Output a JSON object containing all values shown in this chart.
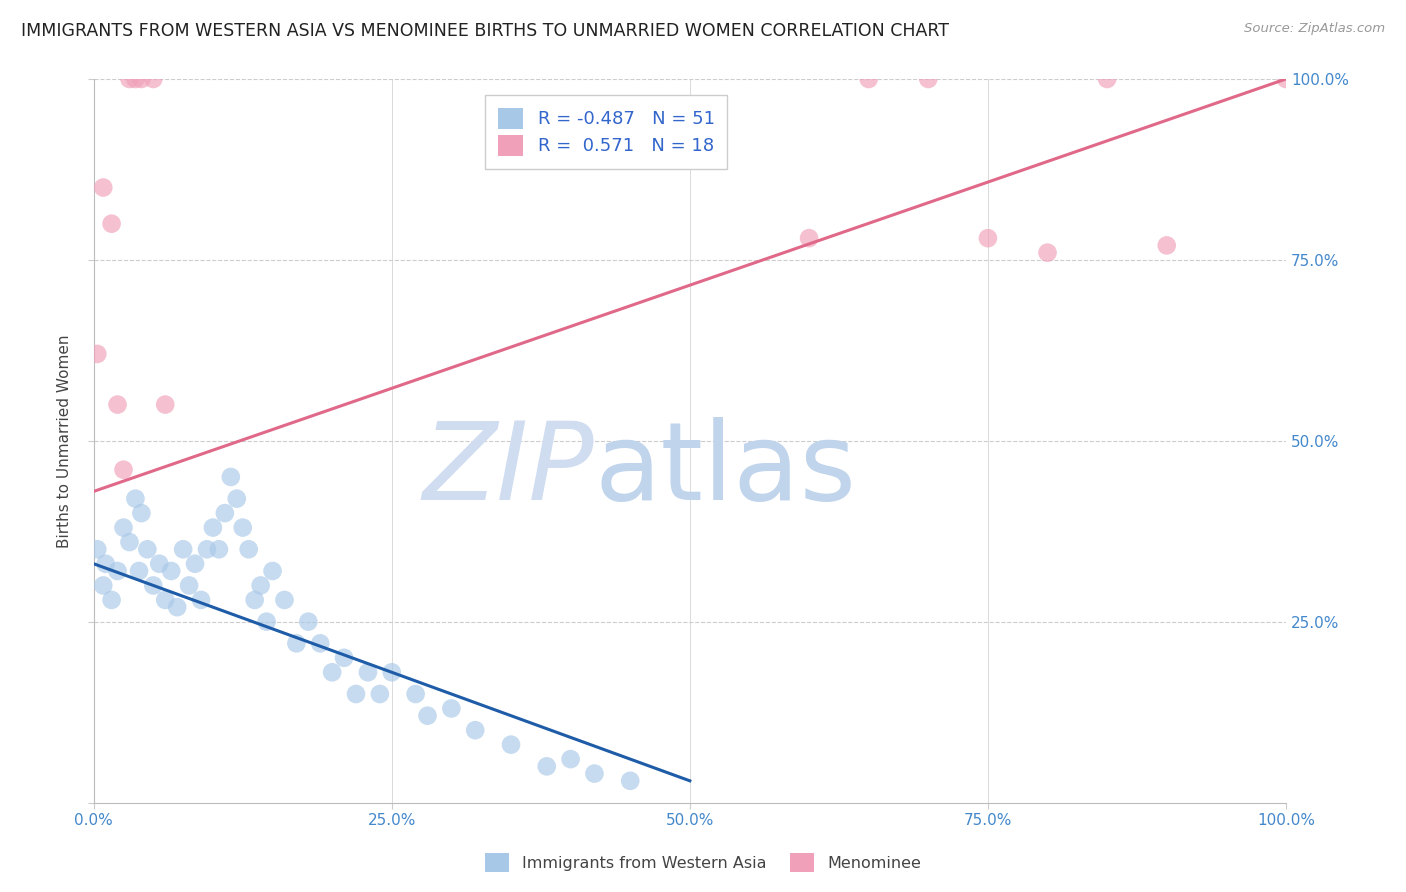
{
  "title": "IMMIGRANTS FROM WESTERN ASIA VS MENOMINEE BIRTHS TO UNMARRIED WOMEN CORRELATION CHART",
  "source": "Source: ZipAtlas.com",
  "ylabel": "Births to Unmarried Women",
  "blue_R": -0.487,
  "blue_N": 51,
  "pink_R": 0.571,
  "pink_N": 18,
  "blue_color": "#a8c8e8",
  "blue_line_color": "#1e5ca8",
  "pink_color": "#f0a0b8",
  "pink_line_color": "#e06888",
  "background_color": "#ffffff",
  "grid_color": "#cccccc",
  "title_color": "#222222",
  "axis_tick_color": "#4488cc",
  "legend_text_color": "#3366cc",
  "blue_x": [
    0.3,
    0.8,
    1.0,
    1.5,
    2.0,
    2.5,
    3.0,
    3.5,
    3.8,
    4.0,
    4.5,
    5.0,
    5.5,
    6.0,
    6.5,
    7.0,
    7.5,
    8.0,
    8.5,
    9.0,
    9.5,
    10.0,
    10.5,
    11.0,
    11.5,
    12.0,
    12.5,
    13.0,
    13.5,
    14.0,
    14.5,
    15.0,
    16.0,
    17.0,
    18.0,
    19.0,
    20.0,
    21.0,
    22.0,
    23.0,
    24.0,
    25.0,
    27.0,
    28.0,
    30.0,
    32.0,
    35.0,
    38.0,
    40.0,
    42.0,
    45.0
  ],
  "blue_y": [
    35.0,
    30.0,
    33.0,
    28.0,
    32.0,
    38.0,
    36.0,
    42.0,
    32.0,
    40.0,
    35.0,
    30.0,
    33.0,
    28.0,
    32.0,
    27.0,
    35.0,
    30.0,
    33.0,
    28.0,
    35.0,
    38.0,
    35.0,
    40.0,
    45.0,
    42.0,
    38.0,
    35.0,
    28.0,
    30.0,
    25.0,
    32.0,
    28.0,
    22.0,
    25.0,
    22.0,
    18.0,
    20.0,
    15.0,
    18.0,
    15.0,
    18.0,
    15.0,
    12.0,
    13.0,
    10.0,
    8.0,
    5.0,
    6.0,
    4.0,
    3.0
  ],
  "pink_x": [
    0.3,
    0.8,
    1.5,
    2.0,
    2.5,
    3.0,
    3.5,
    4.0,
    5.0,
    6.0,
    60.0,
    65.0,
    70.0,
    75.0,
    80.0,
    85.0,
    90.0,
    100.0
  ],
  "pink_y": [
    62.0,
    85.0,
    80.0,
    55.0,
    46.0,
    100.0,
    100.0,
    100.0,
    100.0,
    55.0,
    78.0,
    100.0,
    100.0,
    78.0,
    76.0,
    100.0,
    77.0,
    100.0
  ],
  "blue_line_x0": 0.0,
  "blue_line_y0": 33.0,
  "blue_line_x1": 50.0,
  "blue_line_y1": 3.0,
  "pink_line_x0": 0.0,
  "pink_line_y0": 43.0,
  "pink_line_x1": 100.0,
  "pink_line_y1": 100.0,
  "xlim": [
    0,
    100
  ],
  "ylim": [
    0,
    100
  ],
  "xticks": [
    0,
    25,
    50,
    75,
    100
  ],
  "yticks": [
    0,
    25,
    50,
    75,
    100
  ],
  "xticklabels": [
    "0.0%",
    "25.0%",
    "50.0%",
    "75.0%",
    "100.0%"
  ],
  "right_yticklabels": [
    "",
    "25.0%",
    "50.0%",
    "75.0%",
    "100.0%"
  ],
  "left_yticklabels": [
    "",
    "",
    "",
    "",
    ""
  ],
  "legend_blue_label": "Immigrants from Western Asia",
  "legend_pink_label": "Menominee",
  "watermark_zip": "ZIP",
  "watermark_atlas": "atlas",
  "watermark_color_zip": "#d0dcf0",
  "watermark_color_atlas": "#c0d4ec",
  "dot_size": 180,
  "dot_alpha": 0.65
}
